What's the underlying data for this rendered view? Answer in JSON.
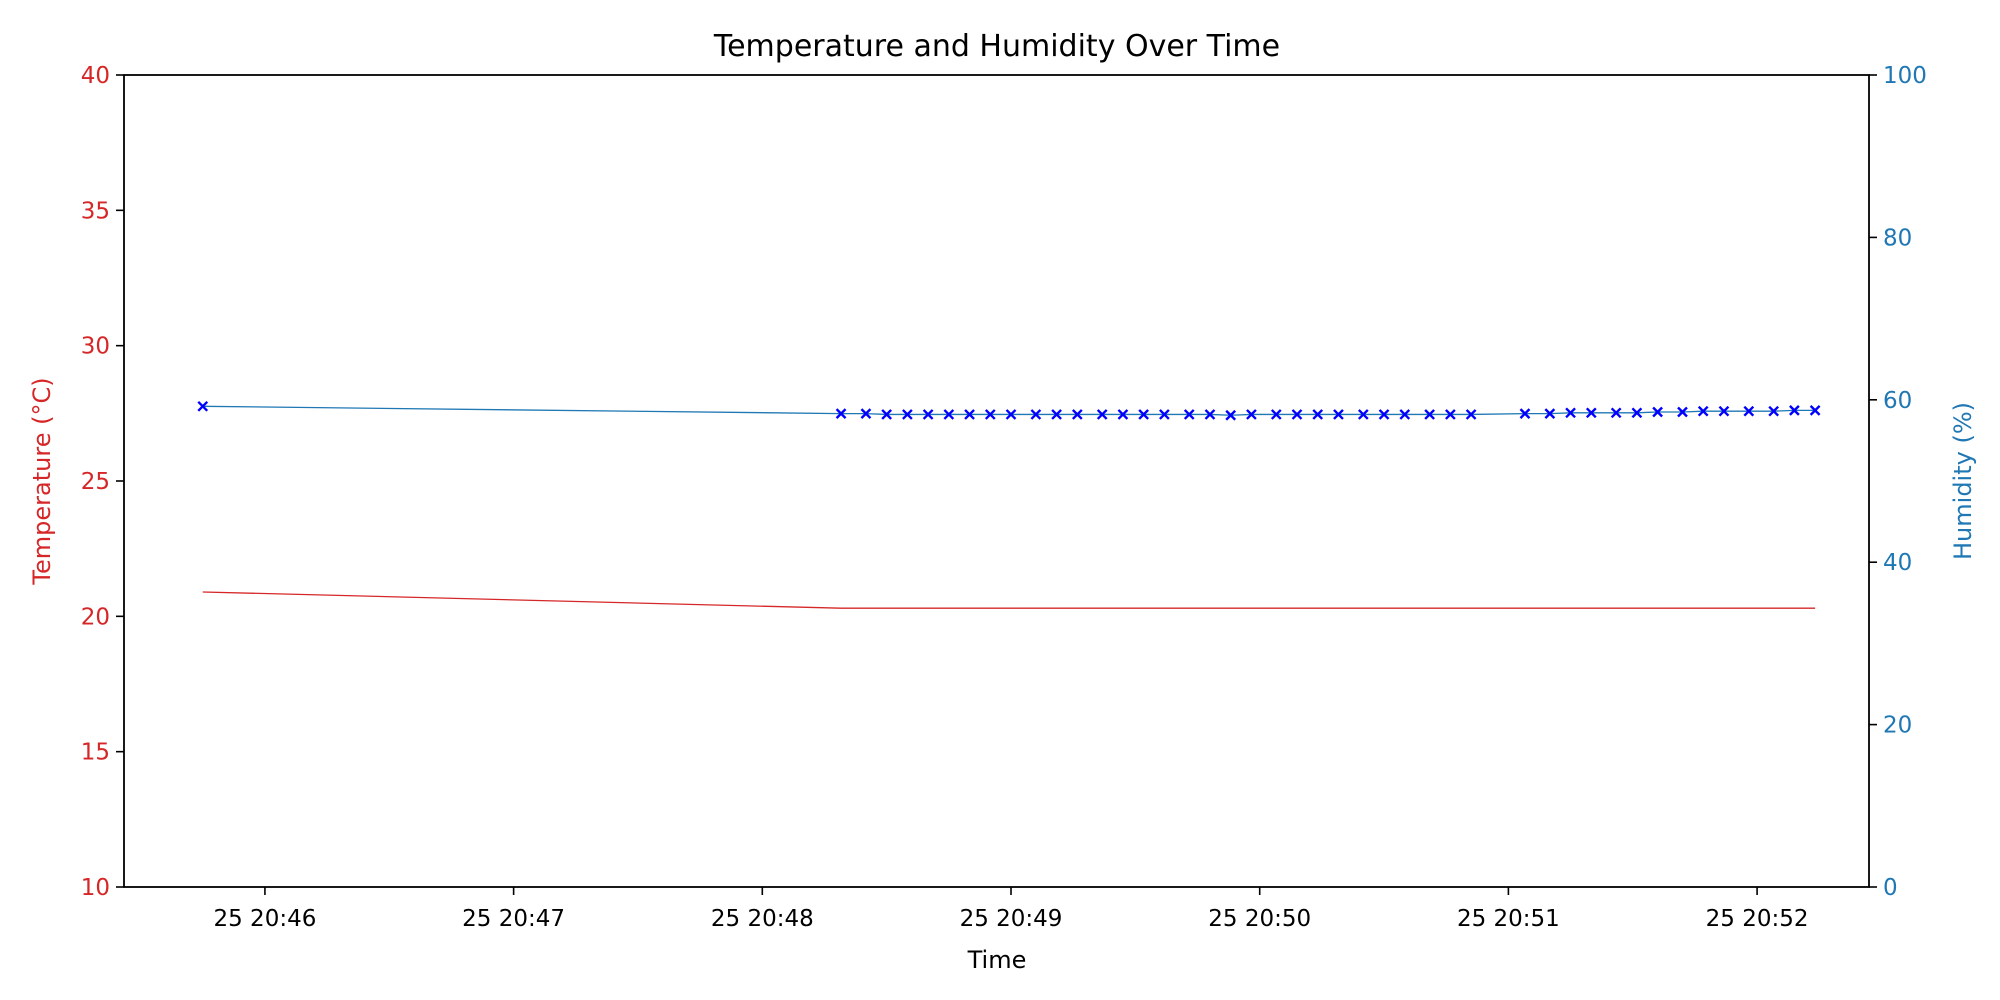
{
  "chart_data": {
    "type": "line",
    "title": "Temperature and Humidity Over Time",
    "xlabel": "Time",
    "x_ticks": [
      "25 20:46",
      "25 20:47",
      "25 20:48",
      "25 20:49",
      "25 20:50",
      "25 20:51",
      "25 20:52"
    ],
    "x_tick_times": [
      "20:46:00",
      "20:47:00",
      "20:48:00",
      "20:49:00",
      "20:50:00",
      "20:51:00",
      "20:52:00"
    ],
    "xlim": [
      "20:45:26",
      "20:52:27"
    ],
    "left_axis": {
      "label": "Temperature (°C)",
      "color": "#d62728",
      "ylim": [
        10,
        40
      ],
      "ticks": [
        10,
        15,
        20,
        25,
        30,
        35,
        40
      ]
    },
    "right_axis": {
      "label": "Humidity (%)",
      "color": "#1f77b4",
      "ylim": [
        0,
        100
      ],
      "ticks": [
        0,
        20,
        40,
        60,
        80,
        100
      ]
    },
    "grid": false,
    "series": [
      {
        "axis": "left",
        "color": "#d62728",
        "marker": "none",
        "x": [
          "20:45:45",
          "20:48:19",
          "20:52:14"
        ],
        "y": [
          20.9,
          20.3,
          20.3
        ]
      },
      {
        "axis": "right",
        "color": "#1f77b4",
        "marker": "x",
        "marker_color": "#0000ff",
        "x": [
          "20:45:45",
          "20:48:19",
          "20:48:25",
          "20:48:30",
          "20:48:35",
          "20:48:40",
          "20:48:45",
          "20:48:50",
          "20:48:55",
          "20:49:00",
          "20:49:06",
          "20:49:11",
          "20:49:16",
          "20:49:22",
          "20:49:27",
          "20:49:32",
          "20:49:37",
          "20:49:43",
          "20:49:48",
          "20:49:53",
          "20:49:58",
          "20:50:04",
          "20:50:09",
          "20:50:14",
          "20:50:19",
          "20:50:25",
          "20:50:30",
          "20:50:35",
          "20:50:41",
          "20:50:46",
          "20:50:51",
          "20:51:04",
          "20:51:10",
          "20:51:15",
          "20:51:20",
          "20:51:26",
          "20:51:31",
          "20:51:36",
          "20:51:42",
          "20:51:47",
          "20:51:52",
          "20:51:58",
          "20:52:04",
          "20:52:09",
          "20:52:14"
        ],
        "y": [
          59.2,
          58.3,
          58.3,
          58.2,
          58.2,
          58.2,
          58.2,
          58.2,
          58.2,
          58.2,
          58.2,
          58.2,
          58.2,
          58.2,
          58.2,
          58.2,
          58.2,
          58.2,
          58.2,
          58.1,
          58.2,
          58.2,
          58.2,
          58.2,
          58.2,
          58.2,
          58.2,
          58.2,
          58.2,
          58.2,
          58.2,
          58.3,
          58.3,
          58.4,
          58.4,
          58.4,
          58.4,
          58.5,
          58.5,
          58.6,
          58.6,
          58.6,
          58.6,
          58.7,
          58.7
        ]
      }
    ]
  }
}
